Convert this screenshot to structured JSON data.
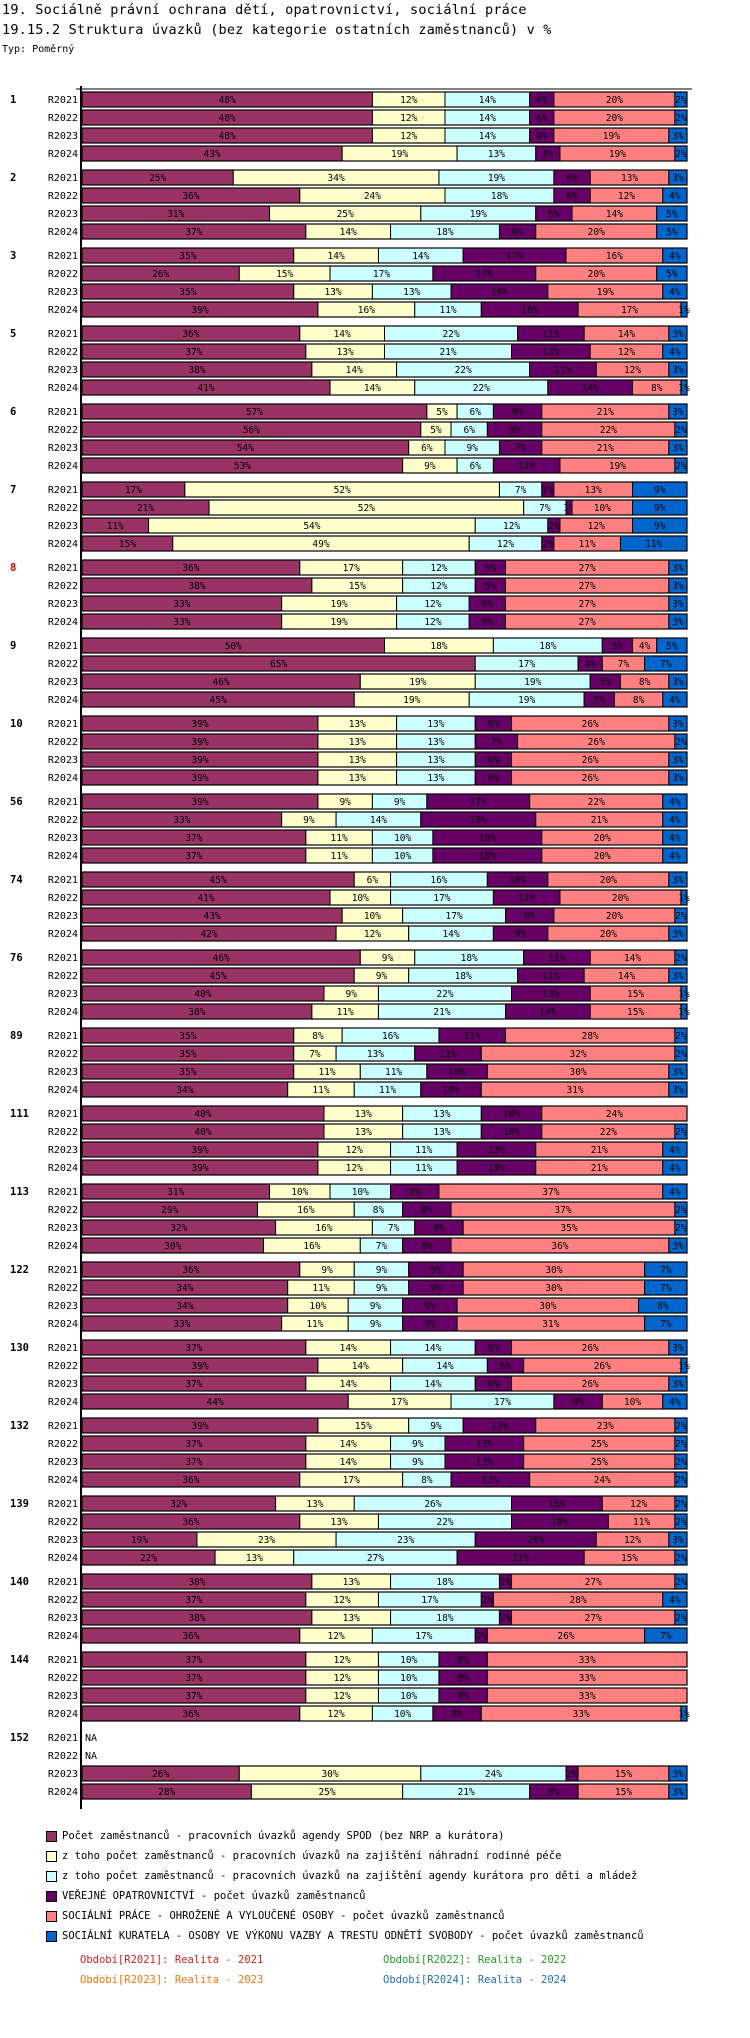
{
  "header": {
    "title1": "19. Sociálně právní ochrana dětí, opatrovnictví, sociální práce",
    "title2": "19.15.2 Struktura úvazků (bez kategorie ostatních zaměstnanců) v %",
    "type_label": "Typ: Poměrný"
  },
  "chart_data": {
    "type": "bar",
    "orientation": "horizontal",
    "stacked": "percent",
    "title": "19.15.2 Struktura úvazků (bez kategorie ostatních zaměstnanců) v %",
    "xlabel": "",
    "ylabel": "",
    "xlim": [
      0,
      100
    ],
    "grid": false,
    "legend_placement": "bottom",
    "series": [
      {
        "name": "Počet zaměstnanců - pracovních úvazků agendy SPOD (bez NRP a kurátora)",
        "color": "#993366"
      },
      {
        "name": "z toho počet zaměstnanců - pracovních úvazků na zajištění náhradní rodinné péče",
        "color": "#FFFFCC"
      },
      {
        "name": "z toho počet zaměstnanců - pracovních úvazků na zajištění agendy kurátora pro děti a mládež",
        "color": "#CCFFFF"
      },
      {
        "name": "VEŘEJNÉ OPATROVNICTVÍ - počet úvazků zaměstnanců",
        "color": "#660066"
      },
      {
        "name": "SOCIÁLNÍ PRÁCE - OHROŽENÉ A VYLOUČENÉ OSOBY - počet úvazků zaměstnanců",
        "color": "#FF8080"
      },
      {
        "name": "SOCIÁLNÍ KURATELA - OSOBY VE VÝKONU VAZBY A TRESTU ODNĚTÍ SVOBODY - počet úvazků zaměstnanců",
        "color": "#0066CC"
      }
    ],
    "periods": [
      "R2021",
      "R2022",
      "R2023",
      "R2024"
    ],
    "highlight_group": "8",
    "groups": [
      {
        "label": "1",
        "rows": [
          [
            48,
            12,
            14,
            4,
            20,
            2
          ],
          [
            48,
            12,
            14,
            4,
            20,
            2
          ],
          [
            48,
            12,
            14,
            4,
            19,
            3
          ],
          [
            43,
            19,
            13,
            4,
            19,
            2
          ]
        ]
      },
      {
        "label": "2",
        "rows": [
          [
            25,
            34,
            19,
            6,
            13,
            3
          ],
          [
            36,
            24,
            18,
            6,
            12,
            4
          ],
          [
            31,
            25,
            19,
            6,
            14,
            5
          ],
          [
            37,
            14,
            18,
            6,
            20,
            5
          ]
        ]
      },
      {
        "label": "3",
        "rows": [
          [
            35,
            14,
            14,
            17,
            16,
            4
          ],
          [
            26,
            15,
            17,
            17,
            20,
            5
          ],
          [
            35,
            13,
            13,
            16,
            19,
            4
          ],
          [
            39,
            16,
            11,
            16,
            17,
            1
          ]
        ]
      },
      {
        "label": "5",
        "rows": [
          [
            36,
            14,
            22,
            11,
            14,
            3
          ],
          [
            37,
            13,
            21,
            13,
            12,
            4
          ],
          [
            38,
            14,
            22,
            11,
            12,
            3
          ],
          [
            41,
            14,
            22,
            14,
            8,
            1
          ]
        ]
      },
      {
        "label": "6",
        "rows": [
          [
            57,
            5,
            6,
            8,
            21,
            3
          ],
          [
            56,
            5,
            6,
            9,
            22,
            2
          ],
          [
            54,
            6,
            9,
            7,
            21,
            3
          ],
          [
            53,
            9,
            6,
            11,
            19,
            2
          ]
        ]
      },
      {
        "label": "7",
        "rows": [
          [
            17,
            52,
            7,
            2,
            13,
            9
          ],
          [
            21,
            52,
            7,
            1,
            10,
            9
          ],
          [
            11,
            54,
            12,
            2,
            12,
            9
          ],
          [
            15,
            49,
            12,
            2,
            11,
            11
          ]
        ]
      },
      {
        "label": "8",
        "rows": [
          [
            36,
            17,
            12,
            5,
            27,
            3
          ],
          [
            38,
            15,
            12,
            5,
            27,
            3
          ],
          [
            33,
            19,
            12,
            6,
            27,
            3
          ],
          [
            33,
            19,
            12,
            6,
            27,
            3
          ]
        ]
      },
      {
        "label": "9",
        "rows": [
          [
            50,
            18,
            18,
            5,
            4,
            5
          ],
          [
            65,
            0,
            17,
            4,
            7,
            7
          ],
          [
            46,
            19,
            19,
            5,
            8,
            3
          ],
          [
            45,
            19,
            19,
            5,
            8,
            4
          ]
        ]
      },
      {
        "label": "10",
        "rows": [
          [
            39,
            13,
            13,
            6,
            26,
            3
          ],
          [
            39,
            13,
            13,
            7,
            26,
            2
          ],
          [
            39,
            13,
            13,
            6,
            26,
            3
          ],
          [
            39,
            13,
            13,
            6,
            26,
            3
          ]
        ]
      },
      {
        "label": "56",
        "rows": [
          [
            39,
            9,
            9,
            17,
            22,
            4
          ],
          [
            33,
            9,
            14,
            19,
            21,
            4
          ],
          [
            37,
            11,
            10,
            18,
            20,
            4
          ],
          [
            37,
            11,
            10,
            18,
            20,
            4
          ]
        ]
      },
      {
        "label": "74",
        "rows": [
          [
            45,
            6,
            16,
            10,
            20,
            3
          ],
          [
            41,
            10,
            17,
            11,
            20,
            1
          ],
          [
            43,
            10,
            17,
            8,
            20,
            2
          ],
          [
            42,
            12,
            14,
            9,
            20,
            3
          ]
        ]
      },
      {
        "label": "76",
        "rows": [
          [
            46,
            9,
            18,
            11,
            14,
            2
          ],
          [
            45,
            9,
            18,
            11,
            14,
            3
          ],
          [
            40,
            9,
            22,
            13,
            15,
            1
          ],
          [
            38,
            11,
            21,
            14,
            15,
            1
          ]
        ]
      },
      {
        "label": "89",
        "rows": [
          [
            35,
            8,
            16,
            11,
            28,
            2
          ],
          [
            35,
            7,
            13,
            11,
            32,
            2
          ],
          [
            35,
            11,
            11,
            10,
            30,
            3
          ],
          [
            34,
            11,
            11,
            10,
            31,
            3
          ]
        ]
      },
      {
        "label": "111",
        "rows": [
          [
            40,
            13,
            13,
            10,
            24,
            0
          ],
          [
            40,
            13,
            13,
            10,
            22,
            2
          ],
          [
            39,
            12,
            11,
            13,
            21,
            4
          ],
          [
            39,
            12,
            11,
            13,
            21,
            4
          ]
        ]
      },
      {
        "label": "113",
        "rows": [
          [
            31,
            10,
            10,
            8,
            37,
            4
          ],
          [
            29,
            16,
            8,
            8,
            37,
            2
          ],
          [
            32,
            16,
            7,
            8,
            35,
            2
          ],
          [
            30,
            16,
            7,
            8,
            36,
            3
          ]
        ]
      },
      {
        "label": "122",
        "rows": [
          [
            36,
            9,
            9,
            9,
            30,
            7
          ],
          [
            34,
            11,
            9,
            9,
            30,
            7
          ],
          [
            34,
            10,
            9,
            9,
            30,
            8
          ],
          [
            33,
            11,
            9,
            9,
            31,
            7
          ]
        ]
      },
      {
        "label": "130",
        "rows": [
          [
            37,
            14,
            14,
            6,
            26,
            3
          ],
          [
            39,
            14,
            14,
            6,
            26,
            1
          ],
          [
            37,
            14,
            14,
            6,
            26,
            3
          ],
          [
            44,
            17,
            17,
            8,
            10,
            4
          ]
        ]
      },
      {
        "label": "132",
        "rows": [
          [
            39,
            15,
            9,
            12,
            23,
            2
          ],
          [
            37,
            14,
            9,
            13,
            25,
            2
          ],
          [
            37,
            14,
            9,
            13,
            25,
            2
          ],
          [
            36,
            17,
            8,
            13,
            24,
            2
          ]
        ]
      },
      {
        "label": "139",
        "rows": [
          [
            32,
            13,
            26,
            15,
            12,
            2
          ],
          [
            36,
            13,
            22,
            16,
            11,
            2
          ],
          [
            19,
            23,
            23,
            20,
            12,
            3
          ],
          [
            22,
            13,
            27,
            21,
            15,
            2
          ]
        ]
      },
      {
        "label": "140",
        "rows": [
          [
            38,
            13,
            18,
            2,
            27,
            2
          ],
          [
            37,
            12,
            17,
            2,
            28,
            4
          ],
          [
            38,
            13,
            18,
            2,
            27,
            2
          ],
          [
            36,
            12,
            17,
            2,
            26,
            7
          ]
        ]
      },
      {
        "label": "144",
        "rows": [
          [
            37,
            12,
            10,
            8,
            33,
            0
          ],
          [
            37,
            12,
            10,
            8,
            33,
            0
          ],
          [
            37,
            12,
            10,
            8,
            33,
            0
          ],
          [
            36,
            12,
            10,
            8,
            33,
            1
          ]
        ]
      },
      {
        "label": "152",
        "rows": [
          null,
          null,
          [
            26,
            30,
            24,
            2,
            15,
            3
          ],
          [
            28,
            25,
            21,
            8,
            15,
            3
          ]
        ]
      }
    ],
    "na_label": "NA"
  },
  "legend": {
    "items": [
      {
        "label": "Počet zaměstnanců - pracovních úvazků agendy SPOD (bez NRP a kurátora)",
        "color": "#993366"
      },
      {
        "label": "z toho počet zaměstnanců - pracovních úvazků na zajištění náhradní rodinné péče",
        "color": "#FFFFCC"
      },
      {
        "label": "z toho počet zaměstnanců - pracovních úvazků na zajištění agendy kurátora pro děti a mládež",
        "color": "#CCFFFF"
      },
      {
        "label": "VEŘEJNÉ OPATROVNICTVÍ - počet úvazků zaměstnanců",
        "color": "#660066"
      },
      {
        "label": "SOCIÁLNÍ PRÁCE - OHROŽENÉ A VYLOUČENÉ OSOBY - počet úvazků zaměstnanců",
        "color": "#FF8080"
      },
      {
        "label": "SOCIÁLNÍ KURATELA - OSOBY VE VÝKONU VAZBY A TRESTU ODNĚTÍ SVOBODY - počet úvazků zaměstnanců",
        "color": "#0066CC"
      }
    ],
    "periods": [
      {
        "label": "Období[R2021]: Realita - 2021",
        "color": "#CC2222"
      },
      {
        "label": "Období[R2022]: Realita - 2022",
        "color": "#229922"
      },
      {
        "label": "Období[R2023]: Realita - 2023",
        "color": "#EE7711"
      },
      {
        "label": "Období[R2024]: Realita - 2024",
        "color": "#1F6FB0"
      }
    ]
  },
  "colors": {
    "highlight_label": "#DD0000",
    "axis": "#000000"
  }
}
